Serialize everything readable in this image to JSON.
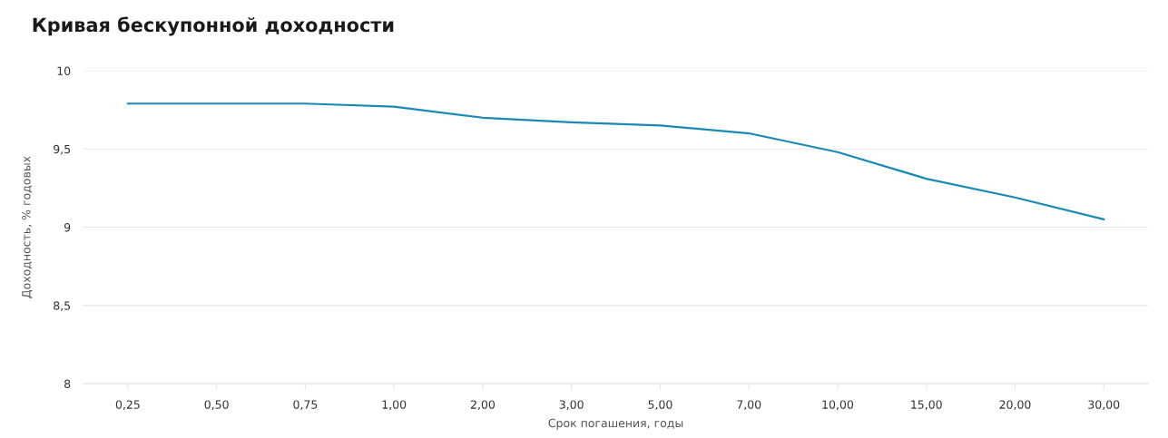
{
  "chart_data": {
    "type": "line",
    "title": "Кривая бескупонной доходности",
    "xlabel": "Срок погашения, годы",
    "ylabel": "Доходность, % годовых",
    "categories": [
      "0,25",
      "0,50",
      "0,75",
      "1,00",
      "2,00",
      "3,00",
      "5,00",
      "7,00",
      "10,00",
      "15,00",
      "20,00",
      "30,00"
    ],
    "series": [
      {
        "color": "#1b8ab2",
        "values": [
          9.79,
          9.79,
          9.79,
          9.77,
          9.7,
          9.67,
          9.65,
          9.6,
          9.48,
          9.31,
          9.19,
          9.05
        ]
      }
    ],
    "ylim": [
      8,
      10
    ],
    "yticks": [
      {
        "value": 8,
        "label": "8"
      },
      {
        "value": 8.5,
        "label": "8,5"
      },
      {
        "value": 9,
        "label": "9"
      },
      {
        "value": 9.5,
        "label": "9,5"
      },
      {
        "value": 10,
        "label": "10"
      }
    ],
    "grid": "y",
    "legend": false,
    "marker": "none",
    "line_style": "solid"
  }
}
